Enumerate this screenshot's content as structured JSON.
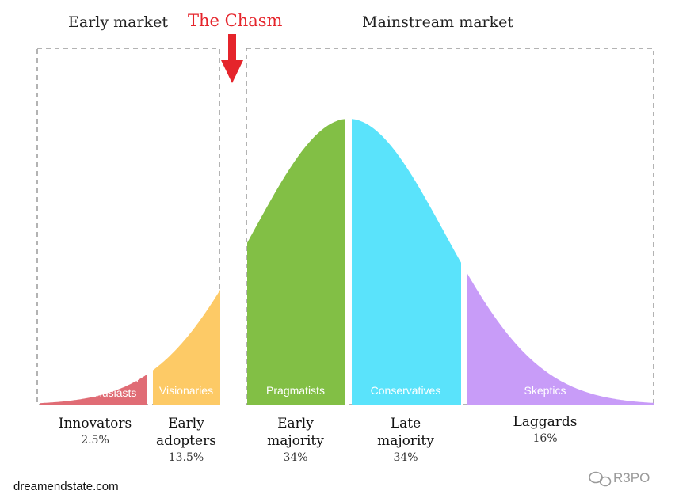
{
  "header": {
    "early_market": "Early market",
    "chasm": "The Chasm",
    "mainstream_market": "Mainstream market"
  },
  "chart_data": {
    "type": "area",
    "title": "",
    "xlabel": "",
    "ylabel": "",
    "series": [
      {
        "name": "Innovators",
        "percent": "2.5%",
        "value": 2.5,
        "inside_label": "Tech enthusiasts",
        "color": "#e06c75"
      },
      {
        "name": "Early adopters",
        "percent": "13.5%",
        "value": 13.5,
        "inside_label": "Visionaries",
        "color": "#fdca66"
      },
      {
        "name": "Early majority",
        "percent": "34%",
        "value": 34,
        "inside_label": "Pragmatists",
        "color": "#82bf45"
      },
      {
        "name": "Late majority",
        "percent": "34%",
        "value": 34,
        "inside_label": "Conservatives",
        "color": "#5ae3fb"
      },
      {
        "name": "Laggards",
        "percent": "16%",
        "value": 16,
        "inside_label": "Skeptics",
        "color": "#c89cf8"
      }
    ]
  },
  "labels": {
    "innovators": [
      "Innovators"
    ],
    "early_adopters": [
      "Early",
      "adopters"
    ],
    "early_majority": [
      "Early",
      "majority"
    ],
    "late_majority": [
      "Late",
      "majority"
    ],
    "laggards": [
      "Laggards"
    ]
  },
  "inside": {
    "tech": [
      "Tech",
      "enthusiasts"
    ]
  },
  "footer": {
    "source": "dreamendstate.com",
    "watermark": "R3PO"
  },
  "colors": {
    "chasm_arrow": "#e5242b",
    "dashed_border": "#9a9a9a"
  }
}
